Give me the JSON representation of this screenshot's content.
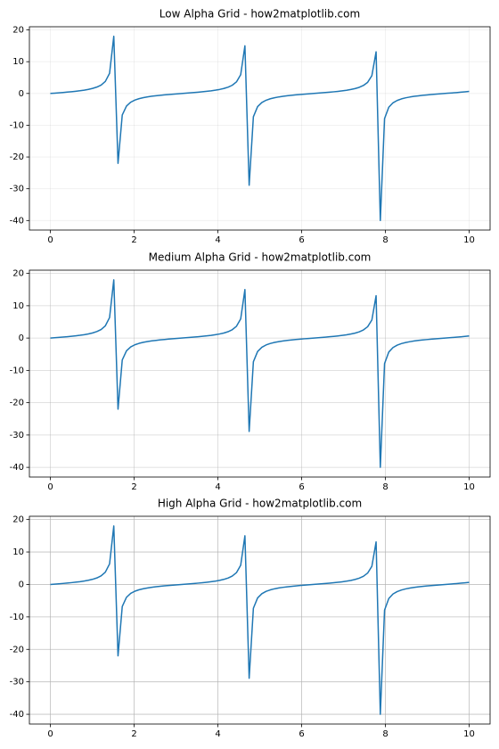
{
  "chart_data": [
    {
      "type": "line",
      "title": "Low Alpha Grid - how2matplotlib.com",
      "color": "#1f77b4",
      "grid": true,
      "grid_alpha": 0.2,
      "xlim": [
        -0.5,
        10.5
      ],
      "xticks": [
        0,
        2,
        4,
        6,
        8,
        10
      ],
      "ylim": [
        -43,
        21
      ],
      "yticks": [
        -40,
        -30,
        -20,
        -10,
        0,
        10,
        20
      ],
      "x": [
        0,
        0.101,
        0.202,
        0.303,
        0.404,
        0.505,
        0.606,
        0.707,
        0.808,
        0.909,
        1.01,
        1.111,
        1.212,
        1.313,
        1.414,
        1.515,
        1.616,
        1.717,
        1.818,
        1.919,
        2.02,
        2.121,
        2.222,
        2.323,
        2.424,
        2.525,
        2.626,
        2.727,
        2.828,
        2.929,
        3.03,
        3.131,
        3.232,
        3.333,
        3.434,
        3.535,
        3.636,
        3.737,
        3.838,
        3.939,
        4.04,
        4.141,
        4.242,
        4.343,
        4.444,
        4.545,
        4.646,
        4.747,
        4.848,
        4.949,
        5.051,
        5.152,
        5.253,
        5.354,
        5.455,
        5.556,
        5.657,
        5.758,
        5.859,
        5.96,
        6.061,
        6.162,
        6.263,
        6.364,
        6.465,
        6.566,
        6.667,
        6.768,
        6.869,
        6.97,
        7.071,
        7.172,
        7.273,
        7.374,
        7.475,
        7.576,
        7.677,
        7.778,
        7.879,
        7.98,
        8.081,
        8.182,
        8.283,
        8.384,
        8.485,
        8.586,
        8.687,
        8.788,
        8.889,
        8.99,
        9.091,
        9.192,
        9.293,
        9.394,
        9.495,
        9.596,
        9.697,
        9.798,
        9.899,
        10
      ],
      "values": [
        0,
        0.101,
        0.205,
        0.313,
        0.428,
        0.553,
        0.695,
        0.855,
        1.045,
        1.285,
        1.59,
        2.01,
        2.64,
        3.79,
        6.33,
        18.0,
        -22.0,
        -6.78,
        -3.96,
        -2.75,
        -2.07,
        -1.63,
        -1.31,
        -1.07,
        -0.871,
        -0.709,
        -0.568,
        -0.44,
        -0.324,
        -0.216,
        -0.112,
        -0.011,
        0.091,
        0.194,
        0.301,
        0.415,
        0.539,
        0.679,
        0.838,
        1.024,
        1.258,
        1.556,
        1.96,
        2.58,
        3.64,
        5.92,
        15.0,
        -28.9,
        -7.33,
        -4.15,
        -2.85,
        -2.13,
        -1.67,
        -1.34,
        -1.09,
        -0.888,
        -0.724,
        -0.581,
        -0.452,
        -0.335,
        -0.226,
        -0.122,
        -0.02,
        0.081,
        0.184,
        0.291,
        0.404,
        0.526,
        0.664,
        0.822,
        1.004,
        1.233,
        1.525,
        1.92,
        2.51,
        3.5,
        5.59,
        13.1,
        -40.0,
        -7.9,
        -4.33,
        -2.94,
        -2.19,
        -1.71,
        -1.37,
        -1.12,
        -0.909,
        -0.739,
        -0.594,
        -0.465,
        -0.347,
        -0.237,
        -0.133,
        -0.031,
        0.07,
        0.173,
        0.279,
        0.392,
        0.514,
        0.648
      ]
    },
    {
      "type": "line",
      "title": "Medium Alpha Grid - how2matplotlib.com",
      "color": "#1f77b4",
      "grid": true,
      "grid_alpha": 0.5,
      "xlim": [
        -0.5,
        10.5
      ],
      "xticks": [
        0,
        2,
        4,
        6,
        8,
        10
      ],
      "ylim": [
        -43,
        21
      ],
      "yticks": [
        -40,
        -30,
        -20,
        -10,
        0,
        10,
        20
      ],
      "x": [
        0,
        0.101,
        0.202,
        0.303,
        0.404,
        0.505,
        0.606,
        0.707,
        0.808,
        0.909,
        1.01,
        1.111,
        1.212,
        1.313,
        1.414,
        1.515,
        1.616,
        1.717,
        1.818,
        1.919,
        2.02,
        2.121,
        2.222,
        2.323,
        2.424,
        2.525,
        2.626,
        2.727,
        2.828,
        2.929,
        3.03,
        3.131,
        3.232,
        3.333,
        3.434,
        3.535,
        3.636,
        3.737,
        3.838,
        3.939,
        4.04,
        4.141,
        4.242,
        4.343,
        4.444,
        4.545,
        4.646,
        4.747,
        4.848,
        4.949,
        5.051,
        5.152,
        5.253,
        5.354,
        5.455,
        5.556,
        5.657,
        5.758,
        5.859,
        5.96,
        6.061,
        6.162,
        6.263,
        6.364,
        6.465,
        6.566,
        6.667,
        6.768,
        6.869,
        6.97,
        7.071,
        7.172,
        7.273,
        7.374,
        7.475,
        7.576,
        7.677,
        7.778,
        7.879,
        7.98,
        8.081,
        8.182,
        8.283,
        8.384,
        8.485,
        8.586,
        8.687,
        8.788,
        8.889,
        8.99,
        9.091,
        9.192,
        9.293,
        9.394,
        9.495,
        9.596,
        9.697,
        9.798,
        9.899,
        10
      ],
      "values": [
        0,
        0.101,
        0.205,
        0.313,
        0.428,
        0.553,
        0.695,
        0.855,
        1.045,
        1.285,
        1.59,
        2.01,
        2.64,
        3.79,
        6.33,
        18.0,
        -22.0,
        -6.78,
        -3.96,
        -2.75,
        -2.07,
        -1.63,
        -1.31,
        -1.07,
        -0.871,
        -0.709,
        -0.568,
        -0.44,
        -0.324,
        -0.216,
        -0.112,
        -0.011,
        0.091,
        0.194,
        0.301,
        0.415,
        0.539,
        0.679,
        0.838,
        1.024,
        1.258,
        1.556,
        1.96,
        2.58,
        3.64,
        5.92,
        15.0,
        -28.9,
        -7.33,
        -4.15,
        -2.85,
        -2.13,
        -1.67,
        -1.34,
        -1.09,
        -0.888,
        -0.724,
        -0.581,
        -0.452,
        -0.335,
        -0.226,
        -0.122,
        -0.02,
        0.081,
        0.184,
        0.291,
        0.404,
        0.526,
        0.664,
        0.822,
        1.004,
        1.233,
        1.525,
        1.92,
        2.51,
        3.5,
        5.59,
        13.1,
        -40.0,
        -7.9,
        -4.33,
        -2.94,
        -2.19,
        -1.71,
        -1.37,
        -1.12,
        -0.909,
        -0.739,
        -0.594,
        -0.465,
        -0.347,
        -0.237,
        -0.133,
        -0.031,
        0.07,
        0.173,
        0.279,
        0.392,
        0.514,
        0.648
      ]
    },
    {
      "type": "line",
      "title": "High Alpha Grid - how2matplotlib.com",
      "color": "#1f77b4",
      "grid": true,
      "grid_alpha": 0.8,
      "xlim": [
        -0.5,
        10.5
      ],
      "xticks": [
        0,
        2,
        4,
        6,
        8,
        10
      ],
      "ylim": [
        -43,
        21
      ],
      "yticks": [
        -40,
        -30,
        -20,
        -10,
        0,
        10,
        20
      ],
      "x": [
        0,
        0.101,
        0.202,
        0.303,
        0.404,
        0.505,
        0.606,
        0.707,
        0.808,
        0.909,
        1.01,
        1.111,
        1.212,
        1.313,
        1.414,
        1.515,
        1.616,
        1.717,
        1.818,
        1.919,
        2.02,
        2.121,
        2.222,
        2.323,
        2.424,
        2.525,
        2.626,
        2.727,
        2.828,
        2.929,
        3.03,
        3.131,
        3.232,
        3.333,
        3.434,
        3.535,
        3.636,
        3.737,
        3.838,
        3.939,
        4.04,
        4.141,
        4.242,
        4.343,
        4.444,
        4.545,
        4.646,
        4.747,
        4.848,
        4.949,
        5.051,
        5.152,
        5.253,
        5.354,
        5.455,
        5.556,
        5.657,
        5.758,
        5.859,
        5.96,
        6.061,
        6.162,
        6.263,
        6.364,
        6.465,
        6.566,
        6.667,
        6.768,
        6.869,
        6.97,
        7.071,
        7.172,
        7.273,
        7.374,
        7.475,
        7.576,
        7.677,
        7.778,
        7.879,
        7.98,
        8.081,
        8.182,
        8.283,
        8.384,
        8.485,
        8.586,
        8.687,
        8.788,
        8.889,
        8.99,
        9.091,
        9.192,
        9.293,
        9.394,
        9.495,
        9.596,
        9.697,
        9.798,
        9.899,
        10
      ],
      "values": [
        0,
        0.101,
        0.205,
        0.313,
        0.428,
        0.553,
        0.695,
        0.855,
        1.045,
        1.285,
        1.59,
        2.01,
        2.64,
        3.79,
        6.33,
        18.0,
        -22.0,
        -6.78,
        -3.96,
        -2.75,
        -2.07,
        -1.63,
        -1.31,
        -1.07,
        -0.871,
        -0.709,
        -0.568,
        -0.44,
        -0.324,
        -0.216,
        -0.112,
        -0.011,
        0.091,
        0.194,
        0.301,
        0.415,
        0.539,
        0.679,
        0.838,
        1.024,
        1.258,
        1.556,
        1.96,
        2.58,
        3.64,
        5.92,
        15.0,
        -28.9,
        -7.33,
        -4.15,
        -2.85,
        -2.13,
        -1.67,
        -1.34,
        -1.09,
        -0.888,
        -0.724,
        -0.581,
        -0.452,
        -0.335,
        -0.226,
        -0.122,
        -0.02,
        0.081,
        0.184,
        0.291,
        0.404,
        0.526,
        0.664,
        0.822,
        1.004,
        1.233,
        1.525,
        1.92,
        2.51,
        3.5,
        5.59,
        13.1,
        -40.0,
        -7.9,
        -4.33,
        -2.94,
        -2.19,
        -1.71,
        -1.37,
        -1.12,
        -0.909,
        -0.739,
        -0.594,
        -0.465,
        -0.347,
        -0.237,
        -0.133,
        -0.031,
        0.07,
        0.173,
        0.279,
        0.392,
        0.514,
        0.648
      ]
    }
  ]
}
